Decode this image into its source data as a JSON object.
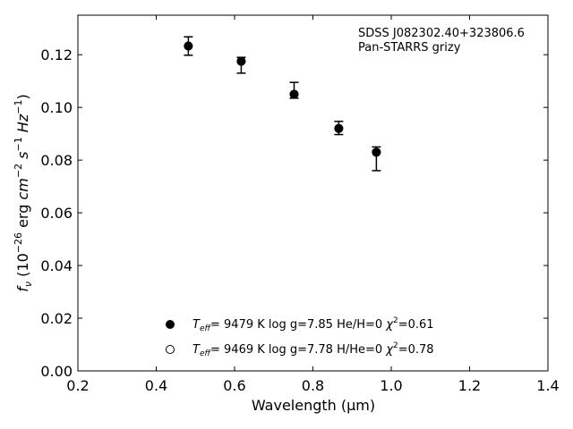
{
  "chart_data": {
    "type": "scatter",
    "annotation": [
      "SDSS J082302.40+323806.6",
      "Pan-STARRS grizy"
    ],
    "xlabel": "Wavelength (μm)",
    "xlim": [
      0.2,
      1.4
    ],
    "ylim": [
      0.0,
      0.135
    ],
    "xticks": [
      "0.2",
      "0.4",
      "0.6",
      "0.8",
      "1.0",
      "1.2",
      "1.4"
    ],
    "yticks": [
      "0.00",
      "0.02",
      "0.04",
      "0.06",
      "0.08",
      "0.10",
      "0.12"
    ],
    "grid": false,
    "legend_position": "bottom-center",
    "ylabel": {
      "f": "f",
      "nu": "ν",
      "open": " (10",
      "exp1": "−26",
      "erg": " erg ",
      "cm": "cm",
      "exp2": "−2",
      "s": " s",
      "exp3": "−1",
      "hz": " Hz",
      "exp4": "−1",
      "close": ")"
    },
    "observed": {
      "marker": "error-bar",
      "x": [
        0.482,
        0.617,
        0.752,
        0.866,
        0.962
      ],
      "y": [
        0.1233,
        0.116,
        0.1065,
        0.0922,
        0.081
      ],
      "yerr_low": [
        0.0035,
        0.003,
        0.003,
        0.0025,
        0.005
      ],
      "yerr_high": [
        0.0035,
        0.003,
        0.003,
        0.0025,
        0.004
      ]
    },
    "series": [
      {
        "marker": "filled-circle",
        "legend": {
          "t": "T",
          "sub": "eff",
          "text1": "=  9479 K  log g=7.85  He/H=0  ",
          "chi": "χ",
          "sup": "2",
          "text2": "=0.61"
        },
        "x": [
          0.482,
          0.617,
          0.752,
          0.866,
          0.962
        ],
        "y": [
          0.1233,
          0.1175,
          0.105,
          0.092,
          0.083
        ]
      },
      {
        "marker": "open-circle",
        "legend": {
          "t": "T",
          "sub": "eff",
          "text1": "=  9469 K  log g=7.78  H/He=0  ",
          "chi": "χ",
          "sup": "2",
          "text2": "=0.78"
        },
        "x": [
          0.482,
          0.617,
          0.752,
          0.866,
          0.962
        ],
        "y": [
          0.1233,
          0.1175,
          0.105,
          0.092,
          0.083
        ]
      }
    ]
  }
}
